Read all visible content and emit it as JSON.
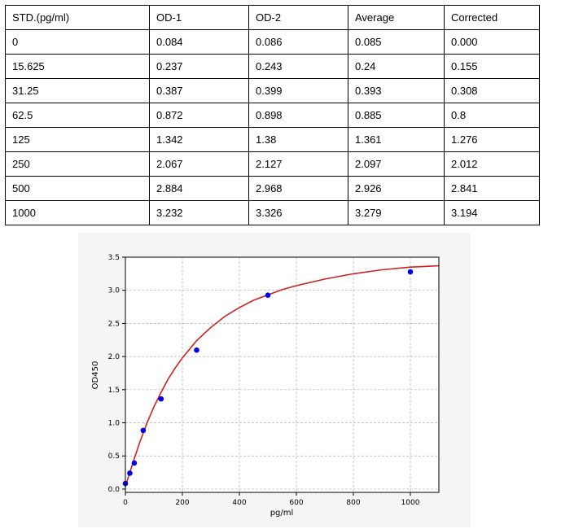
{
  "table": {
    "headers": [
      "STD.(pg/ml)",
      "OD-1",
      "OD-2",
      "Average",
      "Corrected"
    ],
    "rows": [
      [
        "0",
        "0.084",
        "0.086",
        "0.085",
        "0.000"
      ],
      [
        "15.625",
        "0.237",
        "0.243",
        "0.24",
        "0.155"
      ],
      [
        "31.25",
        "0.387",
        "0.399",
        "0.393",
        "0.308"
      ],
      [
        "62.5",
        "0.872",
        "0.898",
        "0.885",
        "0.8"
      ],
      [
        "125",
        "1.342",
        "1.38",
        "1.361",
        "1.276"
      ],
      [
        "250",
        "2.067",
        "2.127",
        "2.097",
        "2.012"
      ],
      [
        "500",
        "2.884",
        "2.968",
        "2.926",
        "2.841"
      ],
      [
        "1000",
        "3.232",
        "3.326",
        "3.279",
        "3.194"
      ]
    ]
  },
  "chart_data": {
    "type": "scatter",
    "xlabel": "pg/ml",
    "ylabel": "OD450",
    "xlim": [
      0,
      1100
    ],
    "ylim": [
      -0.05,
      3.5
    ],
    "xticks": [
      0,
      200,
      400,
      600,
      800,
      1000
    ],
    "yticks": [
      0.0,
      0.5,
      1.0,
      1.5,
      2.0,
      2.5,
      3.0,
      3.5
    ],
    "xtick_labels": [
      "0",
      "200",
      "400",
      "600",
      "800",
      "1000"
    ],
    "ytick_labels": [
      "0.0",
      "0.5",
      "1.0",
      "1.5",
      "2.0",
      "2.5",
      "3.0",
      "3.5"
    ],
    "grid": true,
    "points": {
      "x": [
        0,
        15.625,
        31.25,
        62.5,
        125,
        250,
        500,
        1000
      ],
      "y": [
        0.085,
        0.24,
        0.393,
        0.885,
        1.361,
        2.097,
        2.926,
        3.279
      ]
    },
    "fit_curve": {
      "x": [
        0,
        25,
        50,
        75,
        100,
        125,
        150,
        175,
        200,
        250,
        300,
        350,
        400,
        450,
        500,
        550,
        600,
        700,
        800,
        900,
        1000,
        1100
      ],
      "y": [
        0.04,
        0.38,
        0.7,
        0.99,
        1.24,
        1.46,
        1.66,
        1.83,
        1.98,
        2.24,
        2.44,
        2.61,
        2.74,
        2.85,
        2.93,
        3.01,
        3.07,
        3.17,
        3.25,
        3.31,
        3.35,
        3.37
      ]
    },
    "colors": {
      "points": "#0000ee",
      "curve": "#cc2222",
      "panel_background": "#f5f5f5",
      "grid": "#b0b0b0"
    }
  }
}
